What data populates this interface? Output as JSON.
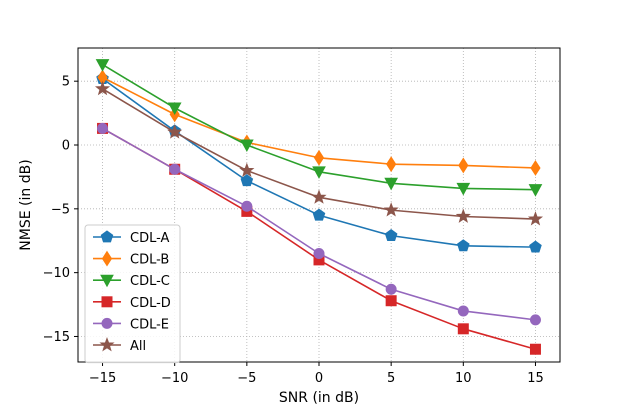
{
  "chart_data": {
    "type": "line",
    "title": "",
    "xlabel": "SNR (in dB)",
    "ylabel": "NMSE (in dB)",
    "x": [
      -15,
      -10,
      -5,
      0,
      5,
      10,
      15
    ],
    "xlim": [
      -16.7,
      16.7
    ],
    "ylim": [
      -17.0,
      7.6
    ],
    "xticks": [
      -15,
      -10,
      -5,
      0,
      5,
      10,
      15
    ],
    "xtick_labels": [
      "−15",
      "−10",
      "−5",
      "0",
      "5",
      "10",
      "15"
    ],
    "yticks": [
      5,
      0,
      -5,
      -10,
      -15
    ],
    "ytick_labels": [
      "5",
      "0",
      "−5",
      "−10",
      "−15"
    ],
    "grid": true,
    "legend_position": "bottom-left",
    "series": [
      {
        "name": "CDL-A",
        "color": "#1f77b4",
        "marker": "pentagon",
        "values": [
          5.2,
          1.1,
          -2.8,
          -5.5,
          -7.1,
          -7.9,
          -8.0
        ]
      },
      {
        "name": "CDL-B",
        "color": "#ff7f0e",
        "marker": "thin-diamond",
        "values": [
          5.3,
          2.4,
          0.2,
          -1.0,
          -1.5,
          -1.6,
          -1.8
        ]
      },
      {
        "name": "CDL-C",
        "color": "#2ca02c",
        "marker": "triangle-down",
        "values": [
          6.3,
          2.9,
          0.0,
          -2.1,
          -3.0,
          -3.4,
          -3.5
        ]
      },
      {
        "name": "CDL-D",
        "color": "#d62728",
        "marker": "square",
        "values": [
          1.3,
          -1.9,
          -5.2,
          -9.0,
          -12.2,
          -14.4,
          -16.0
        ]
      },
      {
        "name": "CDL-E",
        "color": "#9467bd",
        "marker": "circle",
        "values": [
          1.3,
          -1.9,
          -4.8,
          -8.5,
          -11.3,
          -13.0,
          -13.7
        ]
      },
      {
        "name": "All",
        "color": "#8c564b",
        "marker": "star",
        "values": [
          4.4,
          1.0,
          -2.0,
          -4.1,
          -5.1,
          -5.6,
          -5.8
        ]
      }
    ]
  }
}
